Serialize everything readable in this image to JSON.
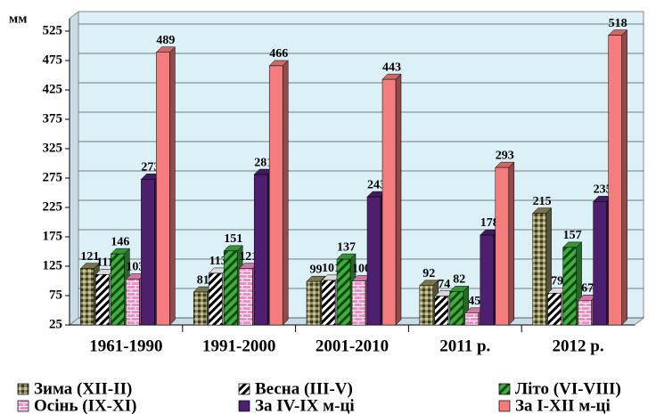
{
  "chart_data": {
    "type": "bar3d",
    "y_label": "мм",
    "categories": [
      "1961-1990",
      "1991-2000",
      "2001-2010",
      "2011 р.",
      "2012 р."
    ],
    "series": [
      {
        "name": "Зима (XII-II)",
        "color": "#8e8a5c",
        "values": [
          121,
          81,
          99,
          92,
          215
        ]
      },
      {
        "name": "Весна (III-V)",
        "color": "#ffffff",
        "values": [
          111,
          113,
          101,
          74,
          79
        ]
      },
      {
        "name": "Літо (VI-VIII)",
        "color": "#3fae3f",
        "values": [
          146,
          151,
          137,
          82,
          157
        ]
      },
      {
        "name": "Осінь (IX-XI)",
        "color": "#f28cc4",
        "values": [
          103,
          121,
          100,
          45,
          67
        ]
      },
      {
        "name": "За IV-IX м-ці",
        "color": "#4e1f6e",
        "values": [
          273,
          281,
          243,
          178,
          235
        ]
      },
      {
        "name": "За I-XII  м-ці",
        "color": "#f47c7c",
        "values": [
          489,
          466,
          443,
          293,
          518
        ]
      }
    ],
    "ylim": [
      25,
      525
    ],
    "yticks": [
      25,
      75,
      125,
      175,
      225,
      275,
      325,
      375,
      425,
      475,
      525
    ],
    "grid": true
  }
}
